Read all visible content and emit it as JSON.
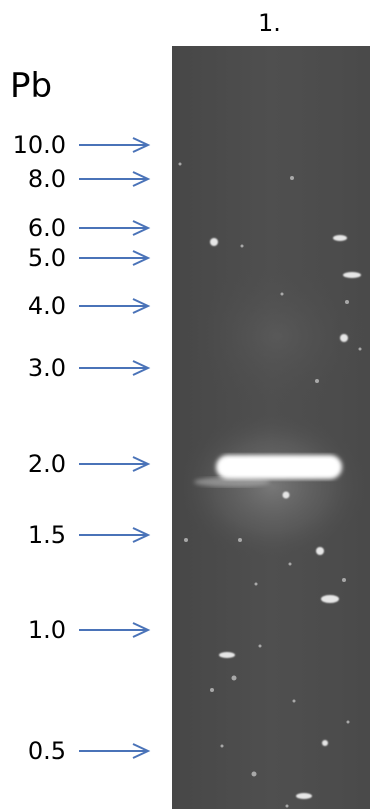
{
  "lane": {
    "number": "1."
  },
  "ladder": {
    "unit": "Pb",
    "arrow_color": "#4a73b8",
    "markers": [
      {
        "label": "10.0"
      },
      {
        "label": "8.0"
      },
      {
        "label": "6.0"
      },
      {
        "label": "5.0"
      },
      {
        "label": "4.0"
      },
      {
        "label": "3.0"
      },
      {
        "label": "2.0"
      },
      {
        "label": "1.5"
      },
      {
        "label": "1.0"
      },
      {
        "label": "0.5"
      }
    ]
  },
  "gel": {
    "background_color": "#4d4d4d",
    "band_color": "#ffffff"
  }
}
